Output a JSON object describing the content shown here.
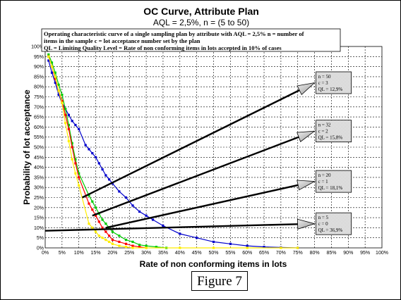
{
  "chart_data": {
    "type": "line",
    "title": "OC Curve, Attribute Plan",
    "subtitle": "AQL = 2,5%, n = (5 to 50)",
    "xlabel": "Rate of non conforming items in lots",
    "ylabel": "Probability of lot acceptance",
    "xlim": [
      0,
      100
    ],
    "ylim": [
      0,
      100
    ],
    "grid": true,
    "x_ticks": [
      "0%",
      "5%",
      "10%",
      "15%",
      "20%",
      "25%",
      "30%",
      "35%",
      "40%",
      "45%",
      "50%",
      "55%",
      "60%",
      "65%",
      "70%",
      "75%",
      "80%",
      "85%",
      "90%",
      "95%",
      "100%"
    ],
    "y_ticks": [
      "0%",
      "5%",
      "10%",
      "15%",
      "20%",
      "25%",
      "30%",
      "35%",
      "40%",
      "45%",
      "50%",
      "55%",
      "60%",
      "65%",
      "70%",
      "75%",
      "80%",
      "85%",
      "90%",
      "95%",
      "100%"
    ],
    "note_lines": [
      "Operating characteristic curve of a single sampling plan by attribute with AQL = 2,5%  n = number of",
      "items in the sample c = lot acceptance number set by the plan",
      "QL = Limiting  Quality  Level = Rate of non conforming items in lots accepted in  10% of  cases"
    ],
    "series": [
      {
        "color": "#0000cc",
        "points": [
          [
            1,
            93
          ],
          [
            2,
            87
          ],
          [
            3,
            82
          ],
          [
            4,
            76
          ],
          [
            5,
            72
          ],
          [
            6,
            69
          ],
          [
            7,
            66
          ],
          [
            8,
            63
          ],
          [
            9,
            61
          ],
          [
            10,
            59
          ],
          [
            12,
            51
          ],
          [
            13,
            49
          ],
          [
            14,
            47
          ],
          [
            15,
            45
          ],
          [
            16,
            42
          ],
          [
            17,
            39
          ],
          [
            18,
            36
          ],
          [
            19,
            34
          ],
          [
            20,
            32
          ],
          [
            22,
            28
          ],
          [
            24,
            25
          ],
          [
            26,
            21
          ],
          [
            28,
            18
          ],
          [
            30,
            16
          ],
          [
            32,
            14
          ],
          [
            35,
            11
          ],
          [
            40,
            7
          ],
          [
            45,
            5
          ],
          [
            50,
            3
          ],
          [
            55,
            2
          ],
          [
            60,
            1
          ],
          [
            65,
            0.5
          ],
          [
            70,
            0.2
          ],
          [
            75,
            0
          ]
        ]
      },
      {
        "color": "#00cc00",
        "points": [
          [
            1,
            96
          ],
          [
            2,
            92
          ],
          [
            3,
            87
          ],
          [
            4,
            81
          ],
          [
            5,
            76
          ],
          [
            6,
            69
          ],
          [
            7,
            61
          ],
          [
            8,
            52
          ],
          [
            9,
            44
          ],
          [
            10,
            37
          ],
          [
            13,
            26
          ],
          [
            14,
            23
          ],
          [
            15,
            20
          ],
          [
            16,
            17
          ],
          [
            17,
            14
          ],
          [
            18,
            12
          ],
          [
            19,
            10
          ],
          [
            20,
            8
          ],
          [
            22,
            6
          ],
          [
            24,
            4
          ],
          [
            26,
            3
          ],
          [
            28,
            1.5
          ],
          [
            30,
            1
          ],
          [
            33,
            0.5
          ],
          [
            36,
            0
          ]
        ]
      },
      {
        "color": "#ff0000",
        "points": [
          [
            1,
            95
          ],
          [
            2,
            90
          ],
          [
            3,
            84
          ],
          [
            4,
            78
          ],
          [
            5,
            73
          ],
          [
            6,
            66
          ],
          [
            7,
            59
          ],
          [
            8,
            50
          ],
          [
            9,
            42
          ],
          [
            10,
            35
          ],
          [
            13,
            22
          ],
          [
            14,
            19
          ],
          [
            15,
            16
          ],
          [
            16,
            13
          ],
          [
            17,
            10
          ],
          [
            18,
            8
          ],
          [
            19,
            6
          ],
          [
            20,
            4
          ],
          [
            22,
            3
          ],
          [
            24,
            2
          ],
          [
            26,
            1
          ],
          [
            28,
            0.5
          ],
          [
            30,
            0
          ]
        ]
      },
      {
        "color": "#ffee00",
        "points": [
          [
            1,
            95
          ],
          [
            2,
            90
          ],
          [
            3,
            85
          ],
          [
            4,
            78
          ],
          [
            5,
            72
          ],
          [
            6,
            62
          ],
          [
            7,
            53
          ],
          [
            8,
            44
          ],
          [
            9,
            37
          ],
          [
            10,
            31
          ],
          [
            13,
            12
          ],
          [
            14,
            10
          ],
          [
            15,
            8
          ],
          [
            16,
            6
          ],
          [
            17,
            5
          ],
          [
            18,
            4
          ],
          [
            19,
            3
          ],
          [
            20,
            2
          ],
          [
            22,
            1
          ],
          [
            24,
            0.5
          ],
          [
            26,
            0
          ],
          [
            30,
            0
          ],
          [
            40,
            0
          ],
          [
            50,
            0
          ],
          [
            60,
            0
          ],
          [
            70,
            0
          ],
          [
            75,
            0
          ]
        ]
      }
    ],
    "annotations": [
      {
        "lines": [
          "n = 50",
          "c = 3",
          "QL = 12,9%"
        ],
        "from": [
          11,
          25
        ],
        "to": [
          80,
          82
        ]
      },
      {
        "lines": [
          "n = 32",
          "c = 2",
          "QL = 15,8%"
        ],
        "from": [
          14,
          16
        ],
        "to": [
          80,
          58
        ]
      },
      {
        "lines": [
          "n = 20",
          "c = 1",
          "QL = 18,1%"
        ],
        "from": [
          18,
          10
        ],
        "to": [
          80,
          33
        ]
      },
      {
        "lines": [
          "n = 5",
          "c = 0",
          "QL = 36,9%"
        ],
        "from": [
          0,
          8.5
        ],
        "to": [
          80,
          12
        ]
      }
    ]
  },
  "figure_label": "Figure 7"
}
